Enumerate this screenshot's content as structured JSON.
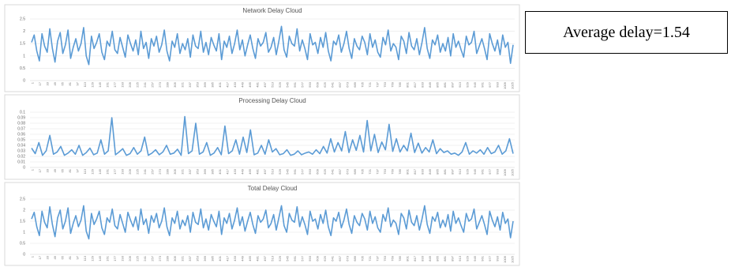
{
  "annotation": {
    "text": "Average delay=1.54"
  },
  "colors": {
    "line": "#5b9bd5",
    "grid": "#e6e6e6",
    "axis": "#cfcfcf",
    "frame": "#d9d9d9"
  },
  "x_ticks": [
    "1",
    "17",
    "33",
    "49",
    "65",
    "81",
    "97",
    "113",
    "129",
    "145",
    "161",
    "177",
    "193",
    "209",
    "225",
    "241",
    "257",
    "273",
    "289",
    "305",
    "321",
    "337",
    "353",
    "369",
    "385",
    "401",
    "417",
    "433",
    "449",
    "465",
    "481",
    "497",
    "513",
    "529",
    "545",
    "561",
    "577",
    "593",
    "609",
    "625",
    "641",
    "657",
    "673",
    "689",
    "705",
    "721",
    "737",
    "753",
    "769",
    "785",
    "801",
    "817",
    "833",
    "849",
    "865",
    "881",
    "897",
    "913",
    "929",
    "945",
    "961",
    "977",
    "993",
    "1009",
    "1025"
  ],
  "chart_data": [
    {
      "type": "line",
      "title": "Network Delay Cloud",
      "yticks": [
        "0",
        "0.5",
        "1",
        "1.5",
        "2",
        "2.5"
      ],
      "ylim": [
        0,
        2.5
      ],
      "grid": true,
      "series": [
        {
          "values": [
            1.55,
            1.85,
            1.2,
            0.8,
            1.9,
            1.4,
            1.15,
            2.1,
            1.3,
            0.75,
            1.6,
            1.95,
            1.1,
            1.45,
            2.05,
            0.9,
            1.35,
            1.7,
            1.2,
            1.5,
            2.15,
            1.0,
            0.65,
            1.8,
            1.3,
            1.55,
            1.9,
            1.15,
            0.85,
            1.6,
            1.4,
            2.0,
            1.25,
            1.1,
            1.75,
            1.35,
            0.95,
            1.85,
            1.5,
            1.2,
            1.65,
            1.05,
            2.0,
            1.3,
            1.55,
            0.9,
            1.7,
            1.4,
            1.8,
            1.15,
            1.45,
            2.05,
            1.2,
            0.8,
            1.6,
            1.35,
            1.9,
            1.1,
            1.5,
            1.25,
            1.7,
            0.95,
            1.85,
            1.4,
            1.3,
            2.0,
            1.15,
            1.55,
            1.05,
            1.75,
            1.45,
            1.2,
            1.9,
            0.85,
            1.6,
            1.35,
            1.8,
            1.1,
            1.5,
            2.05,
            1.25,
            1.65,
            1.0,
            1.45,
            1.85,
            1.3,
            0.9,
            1.7,
            1.4,
            1.55,
            1.95,
            1.15,
            1.35,
            1.75,
            1.05,
            1.6,
            2.2,
            1.25,
            0.95,
            1.8,
            1.5,
            1.4,
            2.1,
            1.2,
            1.65,
            1.3,
            0.85,
            1.9,
            1.45,
            1.55,
            1.1,
            1.75,
            1.35,
            1.95,
            1.2,
            0.8,
            1.6,
            1.45,
            1.85,
            1.15,
            1.5,
            2.0,
            1.3,
            0.9,
            1.7,
            1.4,
            1.25,
            1.8,
            1.55,
            1.05,
            1.9,
            1.35,
            1.65,
            1.15,
            0.95,
            1.75,
            1.45,
            2.05,
            1.2,
            1.5,
            1.35,
            0.85,
            1.8,
            1.6,
            1.1,
            1.95,
            1.4,
            1.25,
            1.7,
            1.05,
            1.55,
            2.15,
            1.3,
            0.9,
            1.65,
            1.45,
            1.85,
            1.15,
            1.5,
            1.2,
            1.75,
            1.0,
            1.9,
            1.35,
            1.6,
            1.25,
            0.95,
            1.8,
            1.45,
            1.55,
            2.0,
            1.1,
            1.4,
            1.7,
            1.3,
            0.85,
            1.9,
            1.5,
            1.2,
            1.65,
            1.05,
            1.85,
            1.35,
            1.55,
            0.7,
            1.45
          ]
        }
      ]
    },
    {
      "type": "line",
      "title": "Processing Delay Cloud",
      "yticks": [
        "0",
        "0.01",
        "0.02",
        "0.03",
        "0.04",
        "0.05",
        "0.06",
        "0.07",
        "0.08",
        "0.09",
        "0.1"
      ],
      "ylim": [
        0,
        0.1
      ],
      "grid": true,
      "series": [
        {
          "values": [
            0.035,
            0.025,
            0.045,
            0.022,
            0.03,
            0.058,
            0.024,
            0.028,
            0.038,
            0.022,
            0.026,
            0.032,
            0.024,
            0.04,
            0.022,
            0.027,
            0.035,
            0.023,
            0.026,
            0.05,
            0.024,
            0.03,
            0.09,
            0.023,
            0.028,
            0.034,
            0.022,
            0.025,
            0.036,
            0.024,
            0.03,
            0.055,
            0.022,
            0.026,
            0.032,
            0.023,
            0.028,
            0.04,
            0.024,
            0.026,
            0.033,
            0.022,
            0.092,
            0.025,
            0.03,
            0.08,
            0.024,
            0.028,
            0.045,
            0.022,
            0.026,
            0.036,
            0.023,
            0.075,
            0.025,
            0.03,
            0.05,
            0.024,
            0.055,
            0.027,
            0.068,
            0.023,
            0.026,
            0.04,
            0.024,
            0.05,
            0.028,
            0.034,
            0.023,
            0.025,
            0.032,
            0.022,
            0.024,
            0.03,
            0.023,
            0.026,
            0.028,
            0.024,
            0.032,
            0.025,
            0.038,
            0.026,
            0.052,
            0.028,
            0.045,
            0.03,
            0.065,
            0.027,
            0.05,
            0.031,
            0.058,
            0.028,
            0.085,
            0.03,
            0.06,
            0.027,
            0.046,
            0.032,
            0.078,
            0.029,
            0.052,
            0.028,
            0.04,
            0.03,
            0.062,
            0.027,
            0.044,
            0.026,
            0.036,
            0.028,
            0.05,
            0.025,
            0.034,
            0.027,
            0.03,
            0.024,
            0.026,
            0.022,
            0.028,
            0.045,
            0.024,
            0.03,
            0.026,
            0.032,
            0.024,
            0.036,
            0.025,
            0.028,
            0.04,
            0.024,
            0.03,
            0.052,
            0.025
          ]
        }
      ]
    },
    {
      "type": "line",
      "title": "Total Delay Cloud",
      "yticks": [
        "0",
        "0.5",
        "1",
        "1.5",
        "2",
        "2.5"
      ],
      "ylim": [
        0,
        2.5
      ],
      "grid": true,
      "series": [
        {
          "values": [
            1.6,
            1.9,
            1.25,
            0.85,
            1.95,
            1.45,
            1.2,
            2.15,
            1.35,
            0.8,
            1.65,
            2.0,
            1.15,
            1.5,
            2.1,
            0.95,
            1.4,
            1.75,
            1.25,
            1.55,
            2.2,
            1.05,
            0.7,
            1.85,
            1.35,
            1.6,
            1.95,
            1.2,
            0.9,
            1.65,
            1.45,
            2.05,
            1.3,
            1.15,
            1.8,
            1.4,
            1.0,
            1.9,
            1.55,
            1.25,
            1.7,
            1.1,
            2.05,
            1.35,
            1.6,
            0.95,
            1.75,
            1.45,
            1.85,
            1.2,
            1.5,
            2.1,
            1.25,
            0.85,
            1.65,
            1.4,
            1.95,
            1.15,
            1.55,
            1.3,
            1.75,
            1.0,
            1.9,
            1.45,
            1.35,
            2.05,
            1.2,
            1.6,
            1.1,
            1.8,
            1.5,
            1.25,
            1.95,
            0.9,
            1.65,
            1.4,
            1.85,
            1.15,
            1.55,
            2.1,
            1.3,
            1.7,
            1.05,
            1.5,
            1.9,
            1.35,
            0.95,
            1.75,
            1.45,
            1.6,
            2.0,
            1.2,
            1.4,
            1.8,
            1.1,
            1.65,
            2.2,
            1.3,
            1.0,
            1.85,
            1.55,
            1.45,
            2.15,
            1.25,
            1.7,
            1.35,
            0.9,
            1.95,
            1.5,
            1.6,
            1.15,
            1.8,
            1.4,
            2.0,
            1.25,
            0.85,
            1.65,
            1.5,
            1.9,
            1.2,
            1.55,
            2.05,
            1.35,
            0.95,
            1.75,
            1.45,
            1.3,
            1.85,
            1.6,
            1.1,
            1.95,
            1.4,
            1.7,
            1.2,
            1.0,
            1.8,
            1.5,
            2.1,
            1.25,
            1.55,
            1.4,
            0.9,
            1.85,
            1.65,
            1.15,
            2.0,
            1.45,
            1.3,
            1.75,
            1.1,
            1.6,
            2.2,
            1.35,
            0.95,
            1.7,
            1.5,
            1.9,
            1.2,
            1.55,
            1.25,
            1.8,
            1.05,
            1.95,
            1.4,
            1.65,
            1.3,
            1.0,
            1.85,
            1.5,
            1.6,
            2.05,
            1.15,
            1.45,
            1.75,
            1.35,
            0.9,
            1.95,
            1.55,
            1.25,
            1.7,
            1.1,
            1.9,
            1.4,
            1.6,
            0.75,
            1.5
          ]
        }
      ]
    }
  ]
}
